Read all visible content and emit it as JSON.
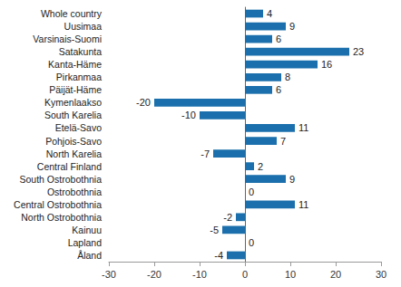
{
  "chart_data": {
    "type": "bar",
    "orientation": "horizontal",
    "categories": [
      "Whole country",
      "Uusimaa",
      "Varsinais-Suomi",
      "Satakunta",
      "Kanta-Häme",
      "Pirkanmaa",
      "Päijät-Häme",
      "Kymenlaakso",
      "South Karelia",
      "Etelä-Savo",
      "Pohjois-Savo",
      "North Karelia",
      "Central Finland",
      "South Ostrobothnia",
      "Ostrobothnia",
      "Central Ostrobothnia",
      "North Ostrobothnia",
      "Kainuu",
      "Lapland",
      "Åland"
    ],
    "values": [
      4,
      9,
      6,
      23,
      16,
      8,
      6,
      -20,
      -10,
      11,
      7,
      -7,
      2,
      9,
      0,
      11,
      -2,
      -5,
      0,
      -4
    ],
    "color": "#1a6fac",
    "xlim": [
      -30,
      30
    ],
    "xticks": [
      -30,
      -20,
      -10,
      0,
      10,
      20,
      30
    ],
    "grid": false,
    "data_labels": true
  }
}
